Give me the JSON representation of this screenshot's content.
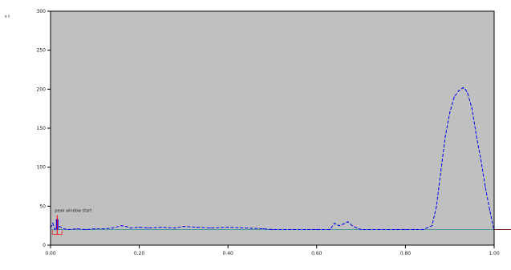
{
  "colors": {
    "plot_bg": "#c0c0c0",
    "frame": "#000000",
    "series": "#0000ee",
    "baseline": "#4f9a9a",
    "cursor": "#4f9a9a",
    "marker_red": "#ff0000",
    "marker_blue": "#0000ff",
    "right_line": "#7a2020"
  },
  "chart_data": {
    "type": "line",
    "xlim": [
      0,
      1
    ],
    "ylim": [
      0,
      300
    ],
    "x_ticks": [
      {
        "value": 0.0,
        "label": "0.00"
      },
      {
        "value": 0.2,
        "label": "0.20"
      },
      {
        "value": 0.4,
        "label": "0.40"
      },
      {
        "value": 0.6,
        "label": "0.60"
      },
      {
        "value": 0.8,
        "label": "0.80"
      },
      {
        "value": 1.0,
        "label": "1.00"
      }
    ],
    "y_ticks": [
      {
        "value": 0,
        "label": "0"
      },
      {
        "value": 50,
        "label": "50"
      },
      {
        "value": 100,
        "label": "100"
      },
      {
        "value": 150,
        "label": "150"
      },
      {
        "value": 200,
        "label": "200"
      },
      {
        "value": 250,
        "label": "250"
      },
      {
        "value": 300,
        "label": "300"
      }
    ],
    "ylabel": "s t",
    "marker_label": "peak window start",
    "baseline_y": 20,
    "cursor_x": 1.0,
    "series": [
      {
        "style": "dashed",
        "x": [
          0.0,
          0.005,
          0.01,
          0.015,
          0.02,
          0.03,
          0.04,
          0.06,
          0.08,
          0.1,
          0.12,
          0.14,
          0.16,
          0.17,
          0.18,
          0.2,
          0.22,
          0.25,
          0.28,
          0.3,
          0.33,
          0.36,
          0.4,
          0.44,
          0.48,
          0.5,
          0.53,
          0.56,
          0.58,
          0.6,
          0.63,
          0.64,
          0.65,
          0.66,
          0.67,
          0.68,
          0.69,
          0.7,
          0.72,
          0.74,
          0.76,
          0.78,
          0.8,
          0.82,
          0.84,
          0.86,
          0.87,
          0.88,
          0.89,
          0.9,
          0.91,
          0.92,
          0.93,
          0.935,
          0.94,
          0.95,
          0.96,
          0.97,
          0.98,
          0.99,
          1.0
        ],
        "y": [
          22,
          28,
          20,
          26,
          24,
          21,
          20,
          21,
          20,
          21,
          21,
          22,
          25,
          24,
          22,
          23,
          22,
          23,
          22,
          24,
          23,
          22,
          23,
          22,
          21,
          20,
          20,
          20,
          20,
          20,
          20,
          28,
          25,
          27,
          30,
          25,
          22,
          20,
          20,
          20,
          20,
          20,
          20,
          20,
          20,
          25,
          50,
          95,
          140,
          170,
          190,
          198,
          202,
          200,
          195,
          175,
          140,
          110,
          75,
          45,
          18
        ]
      }
    ]
  }
}
